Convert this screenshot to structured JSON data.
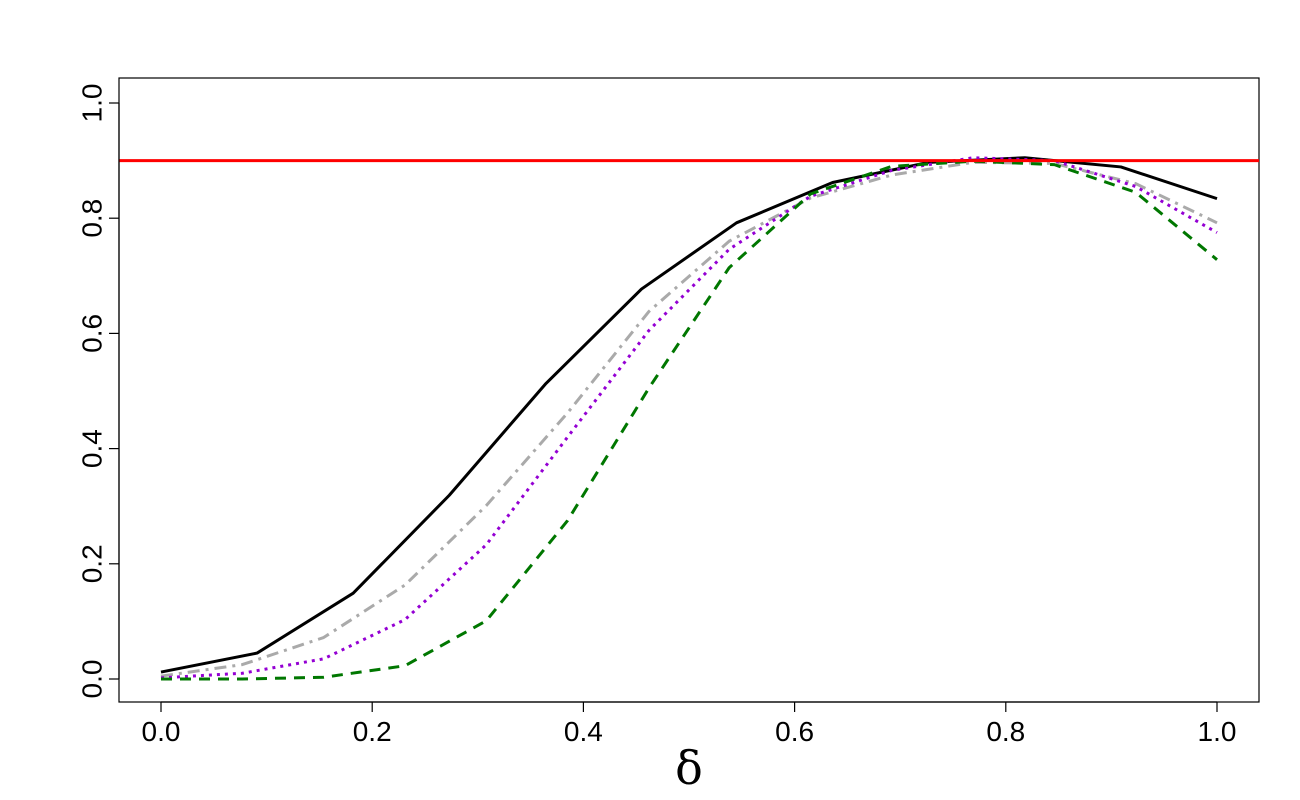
{
  "chart_data": {
    "type": "line",
    "xlabel": "δ",
    "ylabel": "",
    "xlim": [
      0.0,
      1.0
    ],
    "ylim": [
      0.0,
      1.0
    ],
    "x_ticks": [
      "0.0",
      "0.2",
      "0.4",
      "0.6",
      "0.8",
      "1.0"
    ],
    "y_ticks": [
      "0.0",
      "0.2",
      "0.4",
      "0.6",
      "0.8",
      "1.0"
    ],
    "grid": false,
    "legend": "none",
    "reference_line": {
      "y": 0.9,
      "color": "#ff0000"
    },
    "series": [
      {
        "color": "#000000",
        "style": "solid",
        "x": [
          0.0,
          0.091,
          0.182,
          0.273,
          0.364,
          0.455,
          0.545,
          0.636,
          0.727,
          0.818,
          0.909,
          1.0
        ],
        "values": [
          0.012,
          0.045,
          0.149,
          0.319,
          0.512,
          0.677,
          0.792,
          0.862,
          0.897,
          0.905,
          0.889,
          0.834
        ]
      },
      {
        "color": "#aaaaaa",
        "style": "dashdot",
        "x": [
          0.0,
          0.077,
          0.154,
          0.231,
          0.308,
          0.385,
          0.462,
          0.538,
          0.615,
          0.692,
          0.769,
          0.846,
          0.923,
          1.0
        ],
        "values": [
          0.005,
          0.025,
          0.072,
          0.163,
          0.301,
          0.462,
          0.638,
          0.76,
          0.835,
          0.875,
          0.897,
          0.895,
          0.86,
          0.792
        ]
      },
      {
        "color": "#9400d3",
        "style": "dotted",
        "x": [
          0.0,
          0.077,
          0.154,
          0.231,
          0.308,
          0.385,
          0.462,
          0.538,
          0.615,
          0.692,
          0.769,
          0.846,
          0.923,
          1.0
        ],
        "values": [
          0.002,
          0.01,
          0.035,
          0.103,
          0.233,
          0.42,
          0.605,
          0.746,
          0.838,
          0.883,
          0.905,
          0.9,
          0.855,
          0.775
        ]
      },
      {
        "color": "#007700",
        "style": "dashed",
        "x": [
          0.0,
          0.077,
          0.154,
          0.231,
          0.308,
          0.385,
          0.462,
          0.538,
          0.615,
          0.692,
          0.769,
          0.846,
          0.923,
          1.0
        ],
        "values": [
          0.0,
          0.0,
          0.003,
          0.023,
          0.101,
          0.275,
          0.505,
          0.714,
          0.842,
          0.89,
          0.899,
          0.893,
          0.845,
          0.728
        ]
      }
    ]
  }
}
